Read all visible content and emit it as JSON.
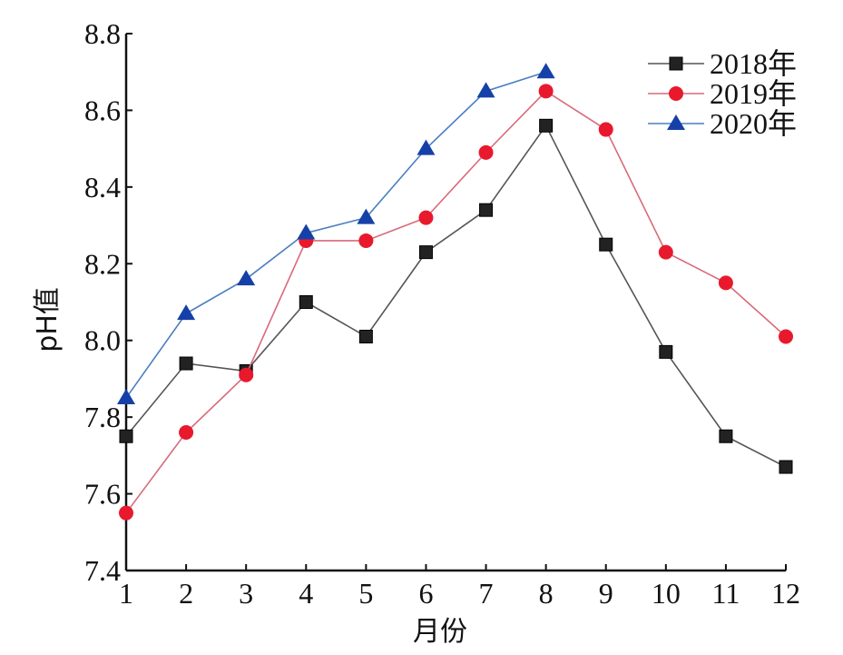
{
  "chart_data": {
    "type": "line",
    "title": "",
    "xlabel": "月份",
    "ylabel": "pH值",
    "x": [
      1,
      2,
      3,
      4,
      5,
      6,
      7,
      8,
      9,
      10,
      11,
      12
    ],
    "x_ticks": [
      "1",
      "2",
      "3",
      "4",
      "5",
      "6",
      "7",
      "8",
      "9",
      "10",
      "11",
      "12"
    ],
    "y_ticks": [
      "7.4",
      "7.6",
      "7.8",
      "8.0",
      "8.2",
      "8.4",
      "8.6",
      "8.8"
    ],
    "ylim": [
      7.4,
      8.8
    ],
    "xlim": [
      1,
      12
    ],
    "grid": false,
    "legend_position": "top-right",
    "series": [
      {
        "name": "2018年",
        "marker": "square",
        "color": "#222222",
        "line_color": "#555555",
        "values": [
          7.75,
          7.94,
          7.92,
          8.1,
          8.01,
          8.23,
          8.34,
          8.56,
          8.25,
          7.97,
          7.75,
          7.67
        ]
      },
      {
        "name": "2019年",
        "marker": "circle",
        "color": "#e8192c",
        "line_color": "#d86a7a",
        "values": [
          7.55,
          7.76,
          7.91,
          8.26,
          8.26,
          8.32,
          8.49,
          8.65,
          8.55,
          8.23,
          8.15,
          8.01
        ]
      },
      {
        "name": "2020年",
        "marker": "triangle",
        "color": "#1540a8",
        "line_color": "#4a7ec0",
        "values": [
          7.85,
          8.07,
          8.16,
          8.28,
          8.32,
          8.5,
          8.65,
          8.7
        ]
      }
    ]
  }
}
